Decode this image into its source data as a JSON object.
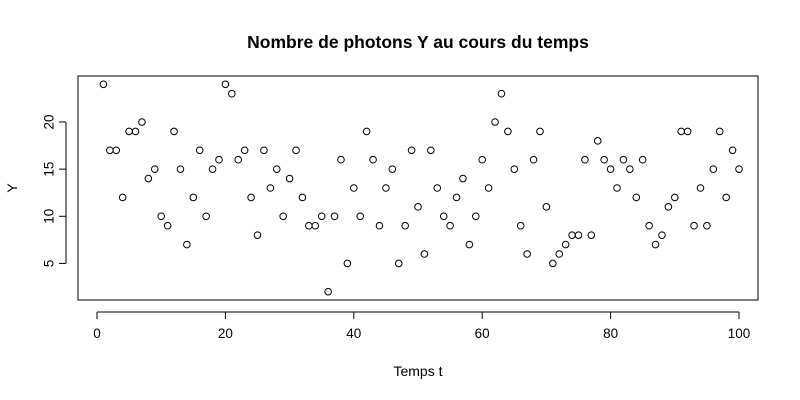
{
  "chart_data": {
    "type": "scatter",
    "title": "Nombre de photons Y au cours du temps",
    "xlabel": "Temps t",
    "ylabel": "Y",
    "xlim": [
      -2.96,
      102.96
    ],
    "ylim": [
      1.12,
      24.88
    ],
    "xticks": [
      0,
      20,
      40,
      60,
      80,
      100
    ],
    "yticks": [
      5,
      10,
      15,
      20
    ],
    "grid": false,
    "legend": "none",
    "x": [
      1,
      2,
      3,
      4,
      5,
      6,
      7,
      8,
      9,
      10,
      11,
      12,
      13,
      14,
      15,
      16,
      17,
      18,
      19,
      20,
      21,
      22,
      23,
      24,
      25,
      26,
      27,
      28,
      29,
      30,
      31,
      32,
      33,
      34,
      35,
      36,
      37,
      38,
      39,
      40,
      41,
      42,
      43,
      44,
      45,
      46,
      47,
      48,
      49,
      50,
      51,
      52,
      53,
      54,
      55,
      56,
      57,
      58,
      59,
      60,
      61,
      62,
      63,
      64,
      65,
      66,
      67,
      68,
      69,
      70,
      71,
      72,
      73,
      74,
      75,
      76,
      77,
      78,
      79,
      80,
      81,
      82,
      83,
      84,
      85,
      86,
      87,
      88,
      89,
      90,
      91,
      92,
      93,
      94,
      95,
      96,
      97,
      98,
      99,
      100
    ],
    "y": [
      24,
      17,
      17,
      12,
      19,
      19,
      20,
      14,
      15,
      10,
      9,
      19,
      15,
      7,
      12,
      17,
      10,
      15,
      16,
      24,
      23,
      16,
      17,
      12,
      8,
      17,
      13,
      15,
      10,
      14,
      17,
      12,
      9,
      9,
      10,
      2,
      10,
      16,
      5,
      13,
      10,
      19,
      16,
      9,
      13,
      15,
      5,
      9,
      17,
      11,
      6,
      17,
      13,
      10,
      9,
      12,
      14,
      7,
      10,
      16,
      13,
      20,
      23,
      19,
      15,
      9,
      6,
      16,
      19,
      11,
      5,
      6,
      7,
      8,
      8,
      16,
      8,
      18,
      16,
      15,
      13,
      16,
      15,
      12,
      16,
      9,
      7,
      8,
      11,
      12,
      19,
      19,
      9,
      13,
      9,
      15,
      19,
      12,
      17,
      15
    ]
  }
}
